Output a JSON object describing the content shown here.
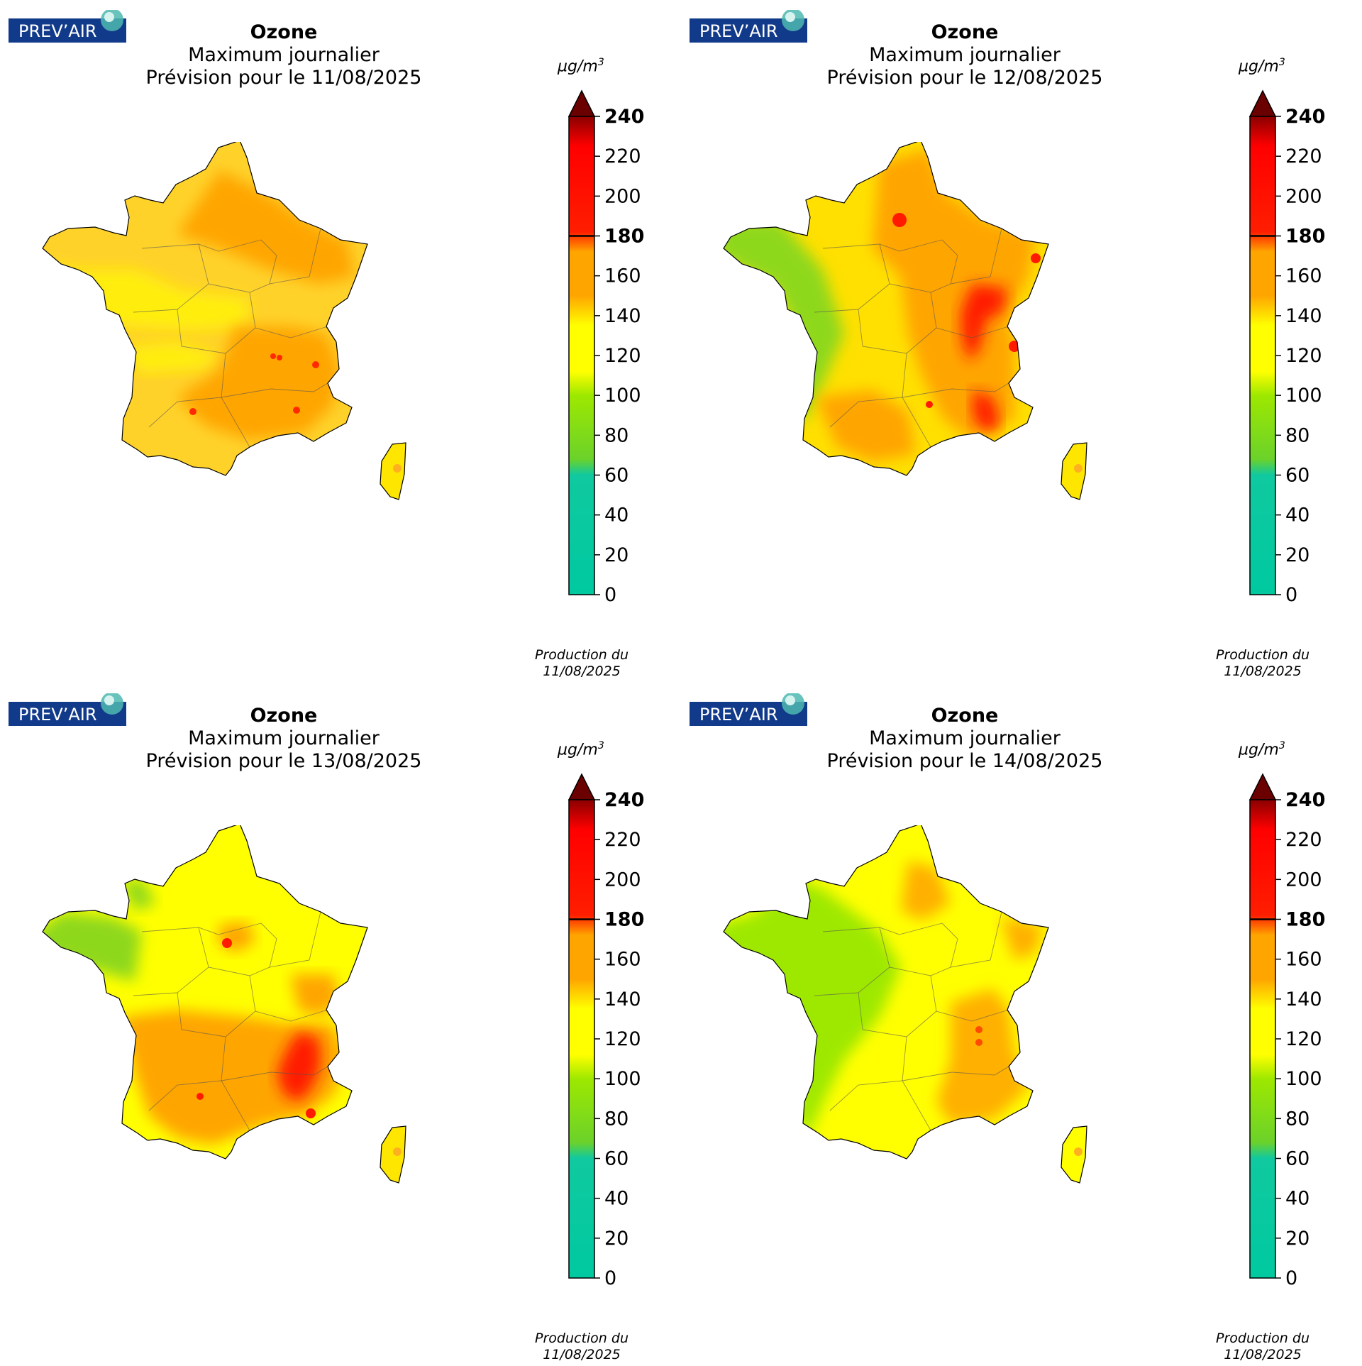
{
  "logo": {
    "text": "PREV’AIR"
  },
  "panels": [
    {
      "title": "Ozone",
      "subtitle": "Maximum journalier",
      "forecast": "Prévision pour le 11/08/2025",
      "unit": "µg/m",
      "unit_exp": "3",
      "production_label": "Production du",
      "production_date": "11/08/2025"
    },
    {
      "title": "Ozone",
      "subtitle": "Maximum journalier",
      "forecast": "Prévision pour le 12/08/2025",
      "unit": "µg/m",
      "unit_exp": "3",
      "production_label": "Production du",
      "production_date": "11/08/2025"
    },
    {
      "title": "Ozone",
      "subtitle": "Maximum journalier",
      "forecast": "Prévision pour le 13/08/2025",
      "unit": "µg/m",
      "unit_exp": "3",
      "production_label": "Production du",
      "production_date": "11/08/2025"
    },
    {
      "title": "Ozone",
      "subtitle": "Maximum journalier",
      "forecast": "Prévision pour le 14/08/2025",
      "unit": "µg/m",
      "unit_exp": "3",
      "production_label": "Production du",
      "production_date": "11/08/2025"
    }
  ],
  "colorbar": {
    "ticks": [
      "0",
      "20",
      "40",
      "60",
      "80",
      "100",
      "120",
      "140",
      "160",
      "180",
      "200",
      "220",
      "240"
    ],
    "bold_ticks": [
      "180",
      "240"
    ],
    "range": [
      0,
      240
    ],
    "threshold": 180,
    "stops": [
      {
        "value": 0,
        "color": "#00c9a0"
      },
      {
        "value": 60,
        "color": "#10c9a0"
      },
      {
        "value": 68,
        "color": "#6bd22a"
      },
      {
        "value": 100,
        "color": "#9ee800"
      },
      {
        "value": 112,
        "color": "#ffff00"
      },
      {
        "value": 135,
        "color": "#ffff00"
      },
      {
        "value": 150,
        "color": "#ffa500"
      },
      {
        "value": 172,
        "color": "#ffa500"
      },
      {
        "value": 182,
        "color": "#ff1e00"
      },
      {
        "value": 225,
        "color": "#ff0000"
      },
      {
        "value": 240,
        "color": "#8b0000"
      }
    ],
    "extend_color": "#6b0000"
  },
  "map_colors": {
    "panel0": {
      "base": "#ffd22a",
      "west": "#ffee10",
      "hot": "#ffa500",
      "spot": "#ff2a00"
    },
    "panel1": {
      "base": "#ffe000",
      "west": "#8ed81a",
      "hot": "#ffa500",
      "spot": "#ff1a00"
    },
    "panel2": {
      "base": "#ffff00",
      "west": "#8ed81a",
      "hot": "#ffa500",
      "spot": "#ff1a00"
    },
    "panel3": {
      "base": "#ffff00",
      "west": "#9ee800",
      "hot": "#ffb000",
      "spot": "#ff4a00"
    }
  }
}
